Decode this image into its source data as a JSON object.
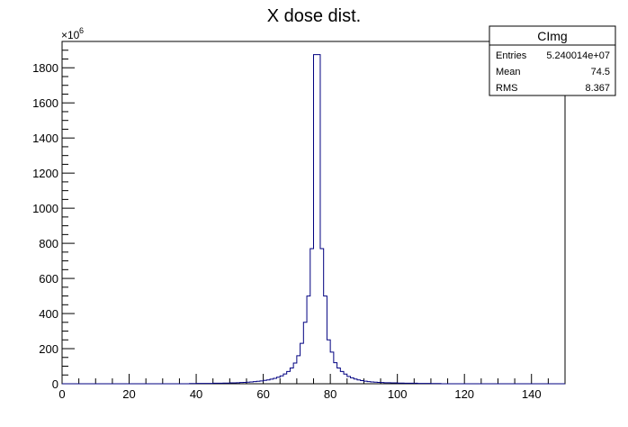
{
  "chart_data": {
    "type": "bar",
    "title": "X dose dist.",
    "xlabel": "",
    "ylabel": "",
    "y_multiplier": "×10",
    "y_multiplier_exp": "6",
    "xlim": [
      0,
      150
    ],
    "ylim": [
      0,
      1950
    ],
    "x_ticks": [
      0,
      20,
      40,
      60,
      80,
      100,
      120,
      140
    ],
    "y_ticks": [
      0,
      200,
      400,
      600,
      800,
      1000,
      1200,
      1400,
      1600,
      1800
    ],
    "grid": false,
    "line_color": "#000080",
    "bin_width": 1,
    "x": [
      38,
      39,
      40,
      41,
      42,
      43,
      44,
      45,
      46,
      47,
      48,
      49,
      50,
      51,
      52,
      53,
      54,
      55,
      56,
      57,
      58,
      59,
      60,
      61,
      62,
      63,
      64,
      65,
      66,
      67,
      68,
      69,
      70,
      71,
      72,
      73,
      74,
      75,
      76,
      77,
      78,
      79,
      80,
      81,
      82,
      83,
      84,
      85,
      86,
      87,
      88,
      89,
      90,
      91,
      92,
      93,
      94,
      95,
      96,
      97,
      98,
      99,
      100,
      101,
      102,
      103,
      104,
      105,
      106,
      107,
      108,
      109,
      110,
      111,
      112
    ],
    "values": [
      1,
      1,
      2,
      2,
      2,
      2,
      2,
      3,
      3,
      3,
      4,
      4,
      5,
      5,
      6,
      7,
      8,
      9,
      10,
      12,
      14,
      16,
      19,
      22,
      26,
      31,
      37,
      45,
      56,
      70,
      90,
      118,
      160,
      230,
      350,
      500,
      770,
      1875,
      1875,
      770,
      500,
      250,
      180,
      120,
      90,
      70,
      55,
      42,
      34,
      27,
      22,
      18,
      15,
      12,
      10,
      9,
      8,
      7,
      6,
      6,
      5,
      5,
      4,
      4,
      3,
      3,
      3,
      3,
      2,
      2,
      2,
      2,
      1,
      1,
      1
    ],
    "stats_box": {
      "title": "CImg",
      "rows": [
        {
          "label": "Entries",
          "value": "5.240014e+07"
        },
        {
          "label": "Mean",
          "value": "74.5"
        },
        {
          "label": "RMS",
          "value": "8.367"
        }
      ]
    }
  }
}
